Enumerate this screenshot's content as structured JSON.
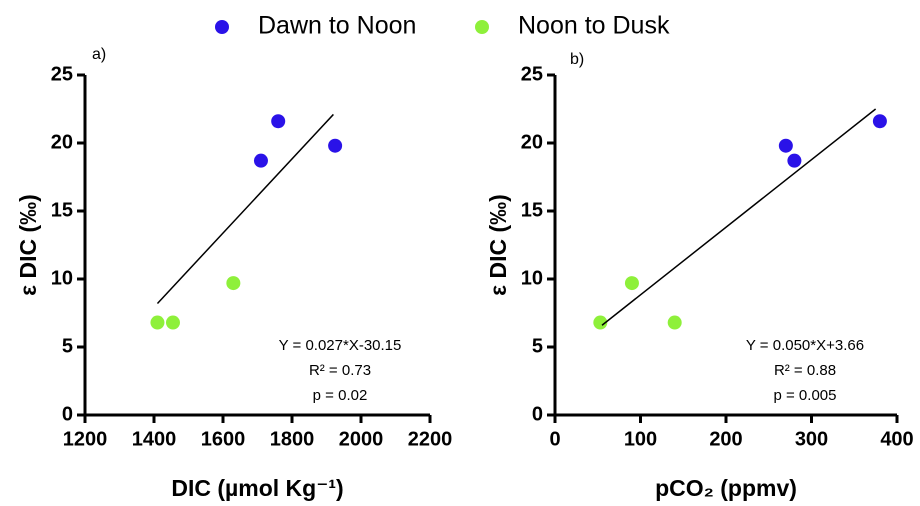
{
  "legend": [
    "Dawn to Noon",
    "Noon to Dusk"
  ],
  "chart_data": [
    {
      "type": "scatter",
      "panel_label": "a)",
      "xlabel": "DIC (µmol Kg⁻¹)",
      "ylabel": "ε DIC (‰)",
      "xlim": [
        1200,
        2200
      ],
      "xticks": [
        1200,
        1400,
        1600,
        1800,
        2000,
        2200
      ],
      "ylim": [
        0,
        25
      ],
      "yticks": [
        0,
        5,
        10,
        15,
        20,
        25
      ],
      "series": [
        {
          "color": "#2a12e8",
          "x": [
            1710,
            1760,
            1925
          ],
          "values": [
            18.7,
            21.6,
            19.8
          ]
        },
        {
          "color": "#8ef03a",
          "x": [
            1410,
            1455,
            1630
          ],
          "values": [
            6.8,
            6.8,
            9.7
          ]
        }
      ],
      "fit_line": {
        "x": [
          1410,
          1920
        ],
        "values": [
          8.2,
          22.1
        ]
      },
      "annotations": [
        "Y = 0.027*X-30.15",
        "R² = 0.73",
        "p = 0.02"
      ]
    },
    {
      "type": "scatter",
      "panel_label": "b)",
      "xlabel": "pCO₂  (ppmv)",
      "ylabel": "ε DIC (‰)",
      "xlim": [
        0,
        400
      ],
      "xticks": [
        0,
        100,
        200,
        300,
        400
      ],
      "ylim": [
        0,
        25
      ],
      "yticks": [
        0,
        5,
        10,
        15,
        20,
        25
      ],
      "series": [
        {
          "color": "#2a12e8",
          "x": [
            270,
            280,
            380
          ],
          "values": [
            19.8,
            18.7,
            21.6
          ]
        },
        {
          "color": "#8ef03a",
          "x": [
            53,
            90,
            140
          ],
          "values": [
            6.8,
            9.7,
            6.8
          ]
        }
      ],
      "fit_line": {
        "x": [
          55,
          375
        ],
        "values": [
          6.6,
          22.5
        ]
      },
      "annotations": [
        "Y = 0.050*X+3.66",
        "R² = 0.88",
        "p = 0.005"
      ]
    }
  ]
}
